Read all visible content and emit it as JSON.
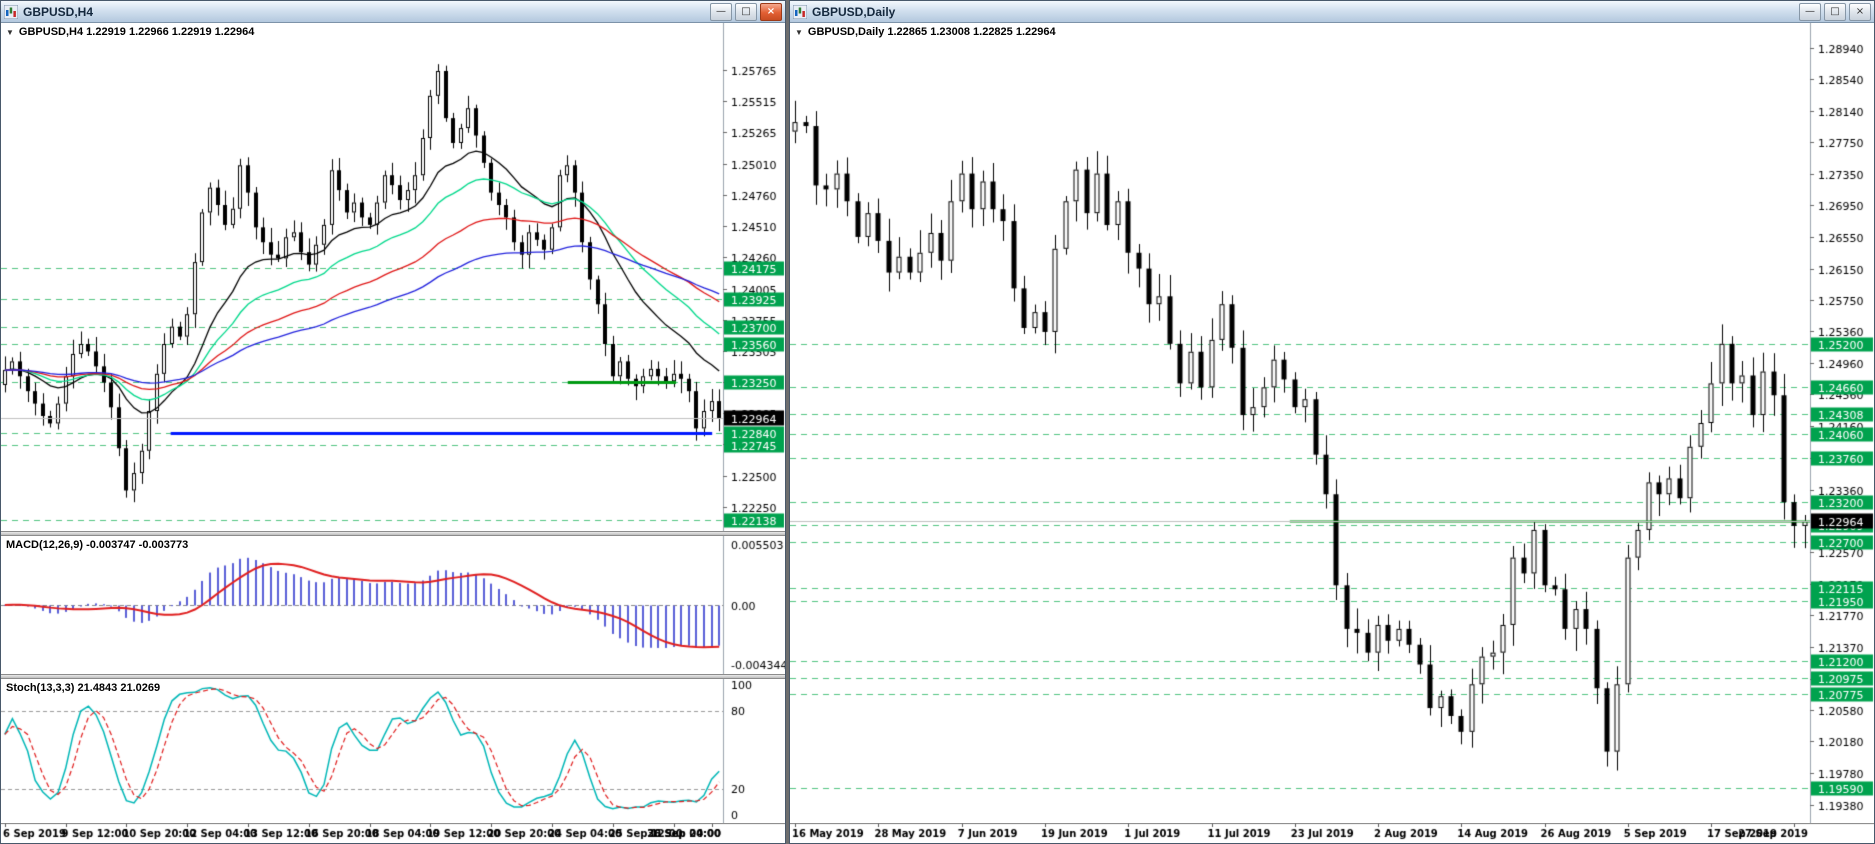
{
  "icons": {
    "collapse": "▼"
  },
  "window_controls": {
    "minimize": "—",
    "maximize": "□",
    "close": "×"
  },
  "colors": {
    "level_line": "#4fc47f",
    "level_label_bg": "#00a24e",
    "current_line": "#c0c0c0",
    "current_label_bg": "#000000",
    "macd_histogram": "#5a5fd7",
    "macd_signal": "#e01f1f",
    "stoch_main": "#00b7b7",
    "stoch_signal": "#e01f1f"
  },
  "left_window": {
    "title": "GBPUSD,H4",
    "info_line": "GBPUSD,H4 1.22919 1.22966 1.22919 1.22964",
    "macd_label": "MACD(12,26,9) -0.003747 -0.003773",
    "stoch_label": "Stoch(13,3,3) 21.4843 21.0269"
  },
  "right_window": {
    "title": "GBPUSD,Daily",
    "info_line": "GBPUSD,Daily 1.22865 1.23008 1.22825 1.22964"
  },
  "chart_data": [
    {
      "type": "candlestick",
      "symbol": "GBPUSD",
      "timeframe": "H4",
      "title": "GBPUSD,H4",
      "current_price": "1.22964",
      "price_min": 1.2215,
      "price_max": 1.2605,
      "axis_width": 62,
      "wick": 0.0009,
      "y_ticks": [
        "1.25765",
        "1.25515",
        "1.25265",
        "1.25010",
        "1.24760",
        "1.24510",
        "1.24260",
        "1.24005",
        "1.23755",
        "1.23505",
        "1.23255",
        "1.23005",
        "1.22755",
        "1.22500",
        "1.22250"
      ],
      "levels": [
        "1.24175",
        "1.23925",
        "1.23700",
        "1.23560",
        "1.23250",
        "1.22840",
        "1.22745",
        "1.22138"
      ],
      "hlines": [
        {
          "price": 1.22845,
          "color": "#0018ff",
          "width": 3,
          "from": 0.235,
          "to": 0.985
        },
        {
          "price": 1.23255,
          "color": "#009a12",
          "width": 3,
          "from": 0.785,
          "to": 0.935
        }
      ],
      "moving_averages": [
        {
          "period": 16,
          "color": "#000000"
        },
        {
          "period": 28,
          "color": "#00d98b"
        },
        {
          "period": 50,
          "color": "#e01717"
        },
        {
          "period": 80,
          "color": "#2222dd"
        }
      ],
      "x_labels": [
        {
          "label": "6 Sep 2019",
          "index": 0
        },
        {
          "label": "9 Sep 12:00",
          "index": 8
        },
        {
          "label": "10 Sep 20:00",
          "index": 16
        },
        {
          "label": "12 Sep 04:00",
          "index": 24
        },
        {
          "label": "13 Sep 12:00",
          "index": 32
        },
        {
          "label": "16 Sep 20:00",
          "index": 40
        },
        {
          "label": "18 Sep 04:00",
          "index": 48
        },
        {
          "label": "19 Sep 12:00",
          "index": 56
        },
        {
          "label": "20 Sep 20:00",
          "index": 64
        },
        {
          "label": "24 Sep 04:00",
          "index": 72
        },
        {
          "label": "25 Sep 12:00",
          "index": 80
        },
        {
          "label": "26 Sep 20:00",
          "index": 88
        },
        {
          "label": "30 Sep 04:00",
          "index": 93
        }
      ],
      "closes": [
        1.2335,
        1.2342,
        1.233,
        1.2318,
        1.2308,
        1.2298,
        1.2292,
        1.2308,
        1.233,
        1.2348,
        1.2356,
        1.235,
        1.2338,
        1.2325,
        1.2305,
        1.2272,
        1.2238,
        1.2252,
        1.227,
        1.2302,
        1.2332,
        1.2356,
        1.237,
        1.2362,
        1.238,
        1.2422,
        1.2462,
        1.2482,
        1.2468,
        1.2452,
        1.2465,
        1.25,
        1.2478,
        1.245,
        1.2438,
        1.2428,
        1.2425,
        1.2442,
        1.2446,
        1.243,
        1.242,
        1.2436,
        1.2452,
        1.2496,
        1.248,
        1.2462,
        1.247,
        1.2458,
        1.2452,
        1.247,
        1.2492,
        1.2484,
        1.2472,
        1.248,
        1.2492,
        1.2522,
        1.2556,
        1.2576,
        1.2538,
        1.2518,
        1.253,
        1.2546,
        1.2524,
        1.2502,
        1.2478,
        1.2468,
        1.2458,
        1.2438,
        1.2428,
        1.2446,
        1.244,
        1.2432,
        1.245,
        1.2492,
        1.25,
        1.2478,
        1.2438,
        1.2408,
        1.2388,
        1.2356,
        1.233,
        1.2342,
        1.2328,
        1.2322,
        1.233,
        1.2336,
        1.233,
        1.2326,
        1.2332,
        1.2328,
        1.2318,
        1.2288,
        1.2302,
        1.231,
        1.22964
      ],
      "indicators": [
        {
          "name": "MACD",
          "params": "12,26,9",
          "value_main": "-0.003747",
          "value_signal": "-0.003773",
          "axis": {
            "top": "0.005503",
            "zero": "0.00",
            "bottom": "-0.004344"
          }
        },
        {
          "name": "Stochastic",
          "params": "13,3,3",
          "value_main": "21.4843",
          "value_signal": "21.0269",
          "axis": [
            "100",
            "80",
            "20",
            "0"
          ],
          "levels": [
            80,
            20
          ]
        }
      ]
    },
    {
      "type": "candlestick",
      "symbol": "GBPUSD",
      "timeframe": "Daily",
      "title": "GBPUSD,Daily",
      "current_price": "1.22964",
      "price_min": 1.193,
      "price_max": 1.291,
      "axis_width": 64,
      "wick": 0.0022,
      "y_ticks": [
        "1.28940",
        "1.28540",
        "1.28140",
        "1.27750",
        "1.27350",
        "1.26950",
        "1.26550",
        "1.26150",
        "1.25750",
        "1.25360",
        "1.24960",
        "1.24560",
        "1.24160",
        "1.23760",
        "1.23360",
        "1.22570",
        "1.22170",
        "1.21770",
        "1.21370",
        "1.20970",
        "1.20580",
        "1.20180",
        "1.19780",
        "1.19380"
      ],
      "levels": [
        "1.25200",
        "1.24660",
        "1.24308",
        "1.24060",
        "1.23760",
        "1.23200",
        "1.22909",
        "1.22700",
        "1.22115",
        "1.21950",
        "1.21200",
        "1.20975",
        "1.20775",
        "1.19590"
      ],
      "hlines": [
        {
          "price": 1.22964,
          "color": "#009a12",
          "width": 2,
          "from": 0.49,
          "to": 1.0
        }
      ],
      "moving_averages": [],
      "x_labels": [
        {
          "label": "16 May 2019",
          "index": 0
        },
        {
          "label": "28 May 2019",
          "index": 8
        },
        {
          "label": "7 Jun 2019",
          "index": 16
        },
        {
          "label": "19 Jun 2019",
          "index": 24
        },
        {
          "label": "1 Jul 2019",
          "index": 32
        },
        {
          "label": "11 Jul 2019",
          "index": 40
        },
        {
          "label": "23 Jul 2019",
          "index": 48
        },
        {
          "label": "2 Aug 2019",
          "index": 56
        },
        {
          "label": "14 Aug 2019",
          "index": 64
        },
        {
          "label": "26 Aug 2019",
          "index": 72
        },
        {
          "label": "5 Sep 2019",
          "index": 80
        },
        {
          "label": "17 Sep 2019",
          "index": 88
        },
        {
          "label": "27 Sep 2019",
          "index": 96
        }
      ],
      "closes": [
        1.28,
        1.2795,
        1.272,
        1.2715,
        1.2735,
        1.27,
        1.2655,
        1.2685,
        1.265,
        1.261,
        1.263,
        1.261,
        1.2635,
        1.266,
        1.2625,
        1.27,
        1.2735,
        1.269,
        1.2725,
        1.269,
        1.2675,
        1.259,
        1.254,
        1.256,
        1.2535,
        1.264,
        1.27,
        1.274,
        1.2685,
        1.2735,
        1.267,
        1.27,
        1.2635,
        1.2615,
        1.257,
        1.258,
        1.252,
        1.247,
        1.251,
        1.2465,
        1.2525,
        1.257,
        1.2515,
        1.243,
        1.244,
        1.2465,
        1.25,
        1.2475,
        1.244,
        1.245,
        1.238,
        1.233,
        1.2215,
        1.216,
        1.2155,
        1.213,
        1.2165,
        1.2145,
        1.216,
        1.214,
        1.2115,
        1.206,
        1.2075,
        1.205,
        1.203,
        1.209,
        1.2125,
        1.213,
        1.2165,
        1.225,
        1.223,
        1.2285,
        1.2215,
        1.221,
        1.216,
        1.2185,
        1.216,
        1.2085,
        1.2005,
        1.209,
        1.225,
        1.2285,
        1.2345,
        1.233,
        1.235,
        1.2325,
        1.239,
        1.242,
        1.247,
        1.252,
        1.247,
        1.248,
        1.243,
        1.2485,
        1.2455,
        1.232,
        1.229,
        1.2296
      ]
    }
  ]
}
